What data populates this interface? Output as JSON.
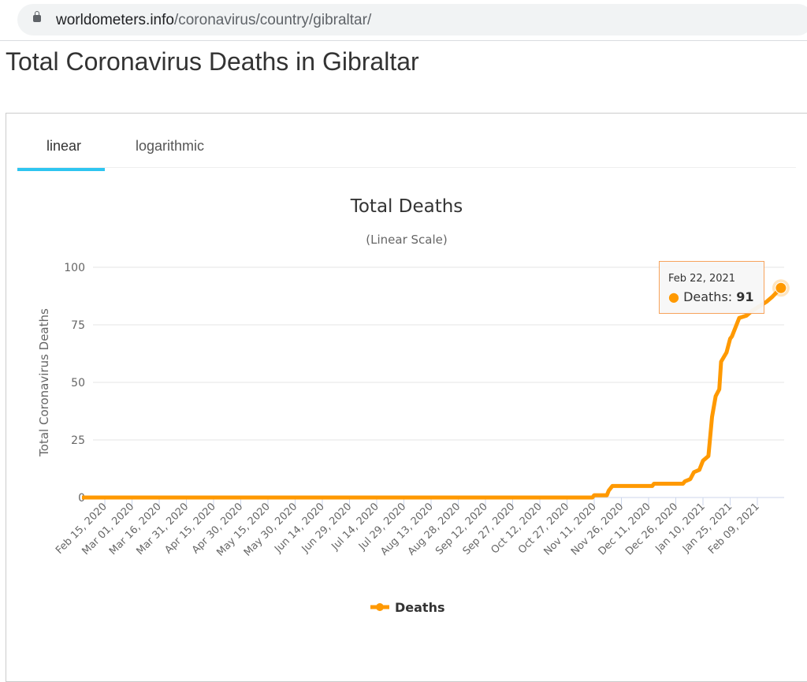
{
  "browser": {
    "url_host": "worldometers.info",
    "url_path": "/coronavirus/country/gibraltar/"
  },
  "page": {
    "title": "Total Coronavirus Deaths in Gibraltar"
  },
  "tabs": [
    {
      "label": "linear",
      "active": true
    },
    {
      "label": "logarithmic",
      "active": false
    }
  ],
  "colors": {
    "series": "#ff9900",
    "tab_accent": "#2ec5f0"
  },
  "tooltip": {
    "date": "Feb 22, 2021",
    "series": "Deaths",
    "value": "91"
  },
  "chart_data": {
    "type": "line",
    "title": "Total Deaths",
    "subtitle": "(Linear Scale)",
    "ylabel": "Total Coronavirus Deaths",
    "xlabel": "",
    "ylim": [
      0,
      100
    ],
    "yticks": [
      0,
      25,
      50,
      75,
      100
    ],
    "grid": true,
    "legend": "bottom",
    "xlim": [
      "2020-02-15",
      "2021-02-22"
    ],
    "xtick_labels": [
      "Feb 15, 2020",
      "Mar 01, 2020",
      "Mar 16, 2020",
      "Mar 31, 2020",
      "Apr 15, 2020",
      "Apr 30, 2020",
      "May 15, 2020",
      "May 30, 2020",
      "Jun 14, 2020",
      "Jun 29, 2020",
      "Jul 14, 2020",
      "Jul 29, 2020",
      "Aug 13, 2020",
      "Aug 28, 2020",
      "Sep 12, 2020",
      "Sep 27, 2020",
      "Oct 12, 2020",
      "Oct 27, 2020",
      "Nov 11, 2020",
      "Nov 26, 2020",
      "Dec 11, 2020",
      "Dec 26, 2020",
      "Jan 10, 2021",
      "Jan 25, 2021",
      "Feb 09, 2021"
    ],
    "series": [
      {
        "name": "Deaths",
        "points": [
          [
            "2020-02-15",
            0
          ],
          [
            "2020-11-10",
            0
          ],
          [
            "2020-11-11",
            1
          ],
          [
            "2020-11-18",
            1
          ],
          [
            "2020-11-19",
            3
          ],
          [
            "2020-11-21",
            5
          ],
          [
            "2020-12-13",
            5
          ],
          [
            "2020-12-14",
            6
          ],
          [
            "2020-12-30",
            6
          ],
          [
            "2020-12-31",
            7
          ],
          [
            "2021-01-03",
            8
          ],
          [
            "2021-01-05",
            11
          ],
          [
            "2021-01-08",
            12
          ],
          [
            "2021-01-10",
            16
          ],
          [
            "2021-01-13",
            18
          ],
          [
            "2021-01-15",
            35
          ],
          [
            "2021-01-17",
            44
          ],
          [
            "2021-01-19",
            47
          ],
          [
            "2021-01-20",
            59
          ],
          [
            "2021-01-23",
            63
          ],
          [
            "2021-01-25",
            69
          ],
          [
            "2021-01-26",
            70
          ],
          [
            "2021-01-30",
            78
          ],
          [
            "2021-02-03",
            79
          ],
          [
            "2021-02-06",
            81
          ],
          [
            "2021-02-14",
            85
          ],
          [
            "2021-02-17",
            87
          ],
          [
            "2021-02-22",
            91
          ]
        ]
      }
    ]
  }
}
